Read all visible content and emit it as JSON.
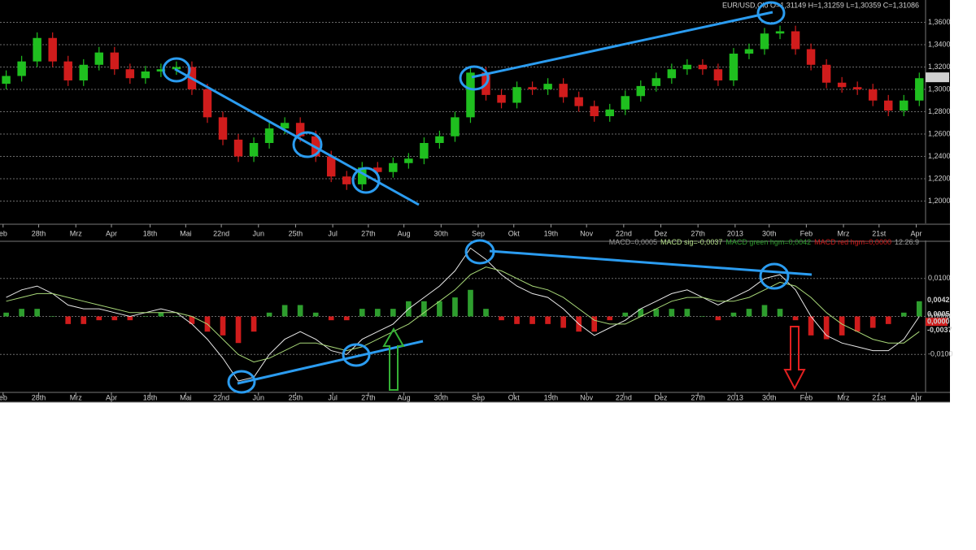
{
  "chart_data": [
    {
      "type": "candlestick",
      "title": "EUR/USD,Clo O=1,31149 H=1,31259 L=1,30359 C=1,31086",
      "up_color": "#1fbf1f",
      "down_color": "#d01c1c",
      "open": [
        1.305,
        1.312,
        1.325,
        1.346,
        1.325,
        1.308,
        1.322,
        1.333,
        1.318,
        1.31,
        1.316,
        1.318,
        1.32,
        1.3,
        1.275,
        1.255,
        1.24,
        1.252,
        1.265,
        1.27,
        1.258,
        1.24,
        1.222,
        1.215,
        1.23,
        1.226,
        1.234,
        1.238,
        1.252,
        1.258,
        1.275,
        1.315,
        1.295,
        1.288,
        1.302,
        1.3,
        1.305,
        1.293,
        1.285,
        1.276,
        1.282,
        1.294,
        1.303,
        1.31,
        1.318,
        1.322,
        1.318,
        1.308,
        1.332,
        1.336,
        1.35,
        1.352,
        1.336,
        1.322,
        1.306,
        1.302,
        1.3,
        1.29,
        1.281,
        1.29
      ],
      "high": [
        1.317,
        1.33,
        1.351,
        1.351,
        1.33,
        1.327,
        1.338,
        1.338,
        1.323,
        1.321,
        1.323,
        1.325,
        1.325,
        1.305,
        1.28,
        1.26,
        1.257,
        1.27,
        1.275,
        1.275,
        1.263,
        1.245,
        1.227,
        1.235,
        1.235,
        1.239,
        1.243,
        1.257,
        1.263,
        1.28,
        1.32,
        1.32,
        1.3,
        1.307,
        1.307,
        1.31,
        1.31,
        1.298,
        1.29,
        1.287,
        1.299,
        1.308,
        1.315,
        1.323,
        1.327,
        1.327,
        1.323,
        1.337,
        1.341,
        1.355,
        1.357,
        1.357,
        1.341,
        1.327,
        1.311,
        1.307,
        1.305,
        1.295,
        1.295,
        1.315
      ],
      "low": [
        1.3,
        1.307,
        1.32,
        1.32,
        1.303,
        1.303,
        1.317,
        1.313,
        1.305,
        1.305,
        1.311,
        1.313,
        1.295,
        1.27,
        1.25,
        1.235,
        1.235,
        1.247,
        1.26,
        1.253,
        1.235,
        1.217,
        1.21,
        1.21,
        1.221,
        1.221,
        1.229,
        1.233,
        1.247,
        1.253,
        1.27,
        1.29,
        1.283,
        1.283,
        1.295,
        1.295,
        1.288,
        1.28,
        1.271,
        1.271,
        1.277,
        1.289,
        1.298,
        1.305,
        1.313,
        1.313,
        1.303,
        1.303,
        1.327,
        1.331,
        1.345,
        1.331,
        1.317,
        1.301,
        1.297,
        1.295,
        1.285,
        1.276,
        1.276,
        1.285
      ],
      "close": [
        1.312,
        1.325,
        1.346,
        1.325,
        1.308,
        1.322,
        1.333,
        1.318,
        1.31,
        1.316,
        1.318,
        1.32,
        1.3,
        1.275,
        1.255,
        1.24,
        1.252,
        1.265,
        1.27,
        1.258,
        1.24,
        1.222,
        1.215,
        1.23,
        1.226,
        1.234,
        1.238,
        1.252,
        1.258,
        1.275,
        1.315,
        1.295,
        1.288,
        1.302,
        1.3,
        1.305,
        1.293,
        1.285,
        1.276,
        1.282,
        1.294,
        1.303,
        1.31,
        1.318,
        1.322,
        1.318,
        1.308,
        1.332,
        1.336,
        1.35,
        1.352,
        1.336,
        1.322,
        1.306,
        1.302,
        1.3,
        1.29,
        1.281,
        1.29,
        1.31
      ],
      "xlim": [
        -0.4,
        59.3
      ],
      "xticks": [
        {
          "value": -0.2,
          "label": "eb"
        },
        {
          "value": 2.1,
          "label": "28th"
        },
        {
          "value": 4.5,
          "label": "Mrz"
        },
        {
          "value": 6.8,
          "label": "Apr"
        },
        {
          "value": 9.3,
          "label": "18th"
        },
        {
          "value": 11.6,
          "label": "Mai"
        },
        {
          "value": 13.9,
          "label": "22nd"
        },
        {
          "value": 16.3,
          "label": "Jun"
        },
        {
          "value": 18.7,
          "label": "25th"
        },
        {
          "value": 21.1,
          "label": "Jul"
        },
        {
          "value": 23.4,
          "label": "27th"
        },
        {
          "value": 25.7,
          "label": "Aug"
        },
        {
          "value": 28.1,
          "label": "30th"
        },
        {
          "value": 30.5,
          "label": "Sep"
        },
        {
          "value": 32.8,
          "label": "Okt"
        },
        {
          "value": 35.2,
          "label": "19th"
        },
        {
          "value": 37.5,
          "label": "Nov"
        },
        {
          "value": 39.9,
          "label": "22nd"
        },
        {
          "value": 42.3,
          "label": "Dez"
        },
        {
          "value": 44.7,
          "label": "27th"
        },
        {
          "value": 47.1,
          "label": "2013"
        },
        {
          "value": 49.3,
          "label": "30th"
        },
        {
          "value": 51.7,
          "label": "Feb"
        },
        {
          "value": 54.1,
          "label": "Mrz"
        },
        {
          "value": 56.4,
          "label": "21st"
        },
        {
          "value": 58.8,
          "label": "Apr"
        }
      ],
      "ylim": [
        1.18,
        1.38
      ],
      "yticks": [
        {
          "value": 1.2,
          "label": "1,2000"
        },
        {
          "value": 1.22,
          "label": "1,2200"
        },
        {
          "value": 1.24,
          "label": "1,2400"
        },
        {
          "value": 1.26,
          "label": "1,2600"
        },
        {
          "value": 1.28,
          "label": "1,2800"
        },
        {
          "value": 1.3,
          "label": "1,3000"
        },
        {
          "value": 1.32,
          "label": "1,3200"
        },
        {
          "value": 1.34,
          "label": "1,3400"
        },
        {
          "value": 1.36,
          "label": "1,3600"
        }
      ],
      "grid": true,
      "last_price": {
        "value": 1.3108,
        "label": "1,3108"
      }
    },
    {
      "type": "macd",
      "header": [
        {
          "text": "MACD=0,0005",
          "color": "#9a9a9a"
        },
        {
          "text": "MACD sig=-0,0037",
          "color": "#b5e08a"
        },
        {
          "text": "MACD green hgm=0,0042",
          "color": "#2e9e2e"
        },
        {
          "text": "MACD red hgm=0,0000",
          "color": "#d01c1c"
        },
        {
          "text": "12.26.9",
          "color": "#9a9a9a"
        }
      ],
      "lines": [
        {
          "color": "#e8e8e8",
          "values": [
            0.005,
            0.007,
            0.008,
            0.006,
            0.003,
            0.002,
            0.002,
            0.001,
            0.0,
            0.001,
            0.002,
            0.001,
            -0.002,
            -0.006,
            -0.011,
            -0.017,
            -0.016,
            -0.01,
            -0.006,
            -0.004,
            -0.006,
            -0.009,
            -0.01,
            -0.006,
            -0.004,
            -0.002,
            0.002,
            0.005,
            0.008,
            0.012,
            0.018,
            0.015,
            0.011,
            0.008,
            0.006,
            0.005,
            0.002,
            -0.002,
            -0.005,
            -0.003,
            -0.001,
            0.002,
            0.004,
            0.006,
            0.007,
            0.005,
            0.003,
            0.005,
            0.007,
            0.01,
            0.011,
            0.007,
            0.0,
            -0.005,
            -0.007,
            -0.008,
            -0.009,
            -0.009,
            -0.006,
            0.0
          ]
        },
        {
          "color": "#a8d878",
          "values": [
            0.004,
            0.005,
            0.006,
            0.006,
            0.005,
            0.004,
            0.003,
            0.002,
            0.001,
            0.001,
            0.001,
            0.001,
            0.0,
            -0.002,
            -0.006,
            -0.01,
            -0.012,
            -0.011,
            -0.009,
            -0.007,
            -0.007,
            -0.008,
            -0.009,
            -0.008,
            -0.006,
            -0.004,
            -0.002,
            0.001,
            0.004,
            0.007,
            0.011,
            0.013,
            0.012,
            0.01,
            0.008,
            0.007,
            0.005,
            0.002,
            -0.001,
            -0.002,
            -0.002,
            0.0,
            0.002,
            0.004,
            0.005,
            0.005,
            0.004,
            0.004,
            0.005,
            0.007,
            0.009,
            0.008,
            0.005,
            0.001,
            -0.002,
            -0.004,
            -0.006,
            -0.007,
            -0.007,
            -0.004
          ]
        }
      ],
      "histogram": {
        "up_color": "#2e9e2e",
        "down_color": "#d01c1c",
        "values": [
          0.001,
          0.002,
          0.002,
          0.0,
          -0.002,
          -0.002,
          -0.001,
          -0.001,
          -0.001,
          0.0,
          0.001,
          0.0,
          -0.002,
          -0.004,
          -0.005,
          -0.007,
          -0.004,
          0.001,
          0.003,
          0.003,
          0.001,
          -0.001,
          -0.001,
          0.002,
          0.002,
          0.002,
          0.004,
          0.004,
          0.004,
          0.005,
          0.007,
          0.002,
          -0.001,
          -0.002,
          -0.002,
          -0.002,
          -0.003,
          -0.004,
          -0.004,
          -0.001,
          0.001,
          0.002,
          0.002,
          0.002,
          0.002,
          0.0,
          -0.001,
          0.001,
          0.002,
          0.003,
          0.002,
          -0.001,
          -0.005,
          -0.006,
          -0.005,
          -0.004,
          -0.003,
          -0.002,
          0.001,
          0.004
        ]
      },
      "xlim": [
        -0.4,
        59.3
      ],
      "xticks": [
        {
          "value": -0.2,
          "label": "eb"
        },
        {
          "value": 2.1,
          "label": "28th"
        },
        {
          "value": 4.5,
          "label": "Mrz"
        },
        {
          "value": 6.8,
          "label": "Apr"
        },
        {
          "value": 9.3,
          "label": "18th"
        },
        {
          "value": 11.6,
          "label": "Mai"
        },
        {
          "value": 13.9,
          "label": "22nd"
        },
        {
          "value": 16.3,
          "label": "Jun"
        },
        {
          "value": 18.7,
          "label": "25th"
        },
        {
          "value": 21.1,
          "label": "Jul"
        },
        {
          "value": 23.4,
          "label": "27th"
        },
        {
          "value": 25.7,
          "label": "Aug"
        },
        {
          "value": 28.1,
          "label": "30th"
        },
        {
          "value": 30.5,
          "label": "Sep"
        },
        {
          "value": 32.8,
          "label": "Okt"
        },
        {
          "value": 35.2,
          "label": "19th"
        },
        {
          "value": 37.5,
          "label": "Nov"
        },
        {
          "value": 39.9,
          "label": "22nd"
        },
        {
          "value": 42.3,
          "label": "Dez"
        },
        {
          "value": 44.7,
          "label": "27th"
        },
        {
          "value": 47.1,
          "label": "2013"
        },
        {
          "value": 49.3,
          "label": "30th"
        },
        {
          "value": 51.7,
          "label": "Feb"
        },
        {
          "value": 54.1,
          "label": "Mrz"
        },
        {
          "value": 56.4,
          "label": "21st"
        },
        {
          "value": 58.8,
          "label": "Apr"
        }
      ],
      "ylim": [
        -0.02,
        0.02
      ],
      "yticks": [
        {
          "value": 0.01,
          "label": "0,0100"
        },
        {
          "value": 0,
          "label": "0,0000"
        },
        {
          "value": -0.01,
          "label": "-0,0100"
        }
      ],
      "grid": true,
      "value_tags": [
        {
          "value": 0.0042,
          "label": "0,0042",
          "color": "#3cc83c"
        },
        {
          "value": 0.0005,
          "label": "0,0005",
          "color": "#cfcfcf"
        },
        {
          "value": 0,
          "label": "0,0000",
          "color": "#ffffff",
          "background": "#d01c1c"
        },
        {
          "value": -0.0037,
          "label": "-0,0037",
          "color": "#6fdc3c"
        }
      ]
    }
  ]
}
